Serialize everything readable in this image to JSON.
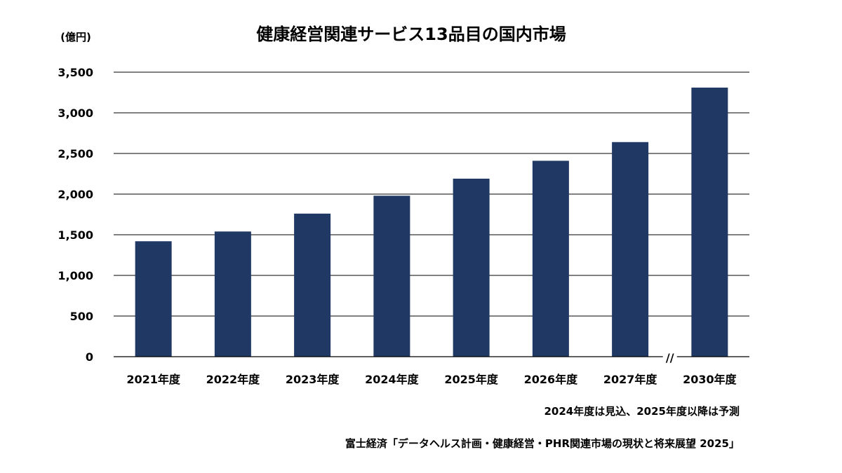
{
  "chart_data": {
    "type": "bar",
    "title": "健康経営関連サービス13品目の国内市場",
    "unit_label": "(億円)",
    "categories": [
      "2021年度",
      "2022年度",
      "2023年度",
      "2024年度",
      "2025年度",
      "2026年度",
      "2027年度",
      "2030年度"
    ],
    "values": [
      1420,
      1540,
      1760,
      1980,
      2190,
      2410,
      2640,
      3310
    ],
    "ylim": [
      0,
      3500
    ],
    "y_ticks": [
      {
        "value": 0,
        "label": "0"
      },
      {
        "value": 500,
        "label": "500"
      },
      {
        "value": 1000,
        "label": "1,000"
      },
      {
        "value": 1500,
        "label": "1,500"
      },
      {
        "value": 2000,
        "label": "2,000"
      },
      {
        "value": 2500,
        "label": "2,500"
      },
      {
        "value": 3000,
        "label": "3,000"
      },
      {
        "value": 3500,
        "label": "3,500"
      }
    ],
    "grid": true,
    "bar_color": "#203864",
    "axis_break_mark": "//",
    "note": "2024年度は見込、2025年度以降は予測",
    "source": "富士経済「データヘルス計画・健康経営・PHR関連市場の現状と将来展望 2025」"
  }
}
